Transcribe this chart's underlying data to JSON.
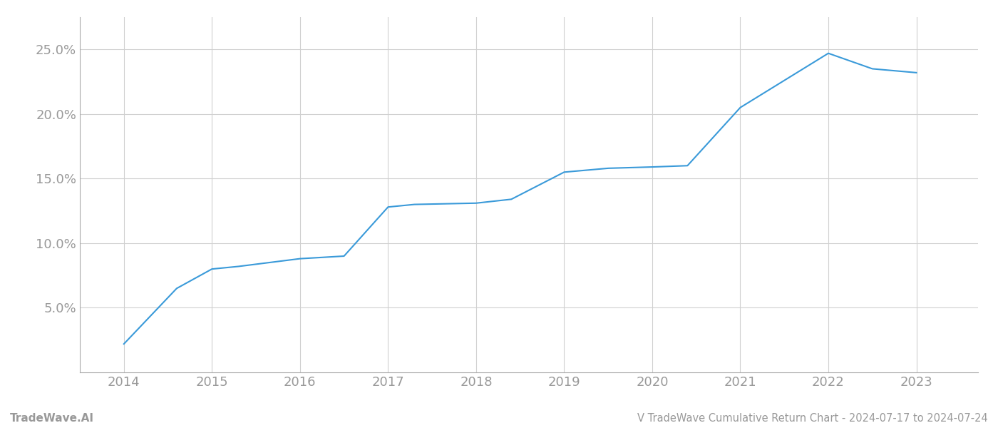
{
  "x_values": [
    2014.0,
    2014.6,
    2015.0,
    2015.3,
    2016.0,
    2016.5,
    2017.0,
    2017.3,
    2018.0,
    2018.4,
    2019.0,
    2019.5,
    2020.0,
    2020.4,
    2021.0,
    2022.0,
    2022.5,
    2023.0
  ],
  "y_values": [
    2.2,
    6.5,
    8.0,
    8.2,
    8.8,
    9.0,
    12.8,
    13.0,
    13.1,
    13.4,
    15.5,
    15.8,
    15.9,
    16.0,
    20.5,
    24.7,
    23.5,
    23.2
  ],
  "line_color": "#3a9ad9",
  "line_width": 1.5,
  "background_color": "#ffffff",
  "grid_color": "#d0d0d0",
  "title": "V TradeWave Cumulative Return Chart - 2024-07-17 to 2024-07-24",
  "watermark": "TradeWave.AI",
  "xlim": [
    2013.5,
    2023.7
  ],
  "ylim": [
    0.0,
    27.5
  ],
  "yticks": [
    5.0,
    10.0,
    15.0,
    20.0,
    25.0
  ],
  "xticks": [
    2014,
    2015,
    2016,
    2017,
    2018,
    2019,
    2020,
    2021,
    2022,
    2023
  ],
  "tick_label_color": "#999999",
  "title_fontsize": 10.5,
  "watermark_fontsize": 11,
  "axis_line_color": "#aaaaaa",
  "tick_fontsize": 13
}
